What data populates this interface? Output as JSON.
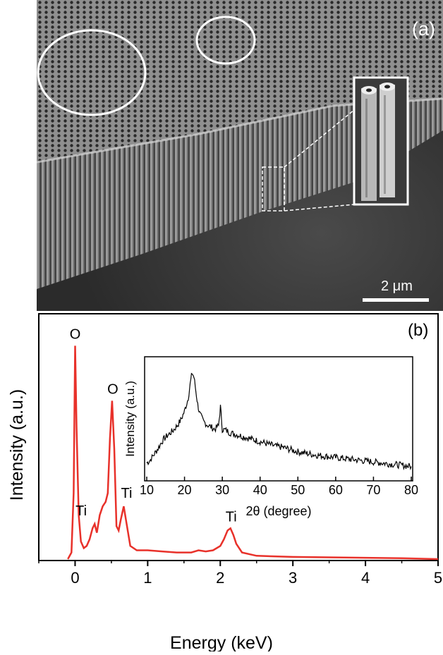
{
  "figure": {
    "panel_a": {
      "label": "(a)",
      "scale_bar_label": "2 μm"
    },
    "panel_b": {
      "label": "(b)"
    }
  },
  "chart_data": [
    {
      "type": "line",
      "panel": "b",
      "xlabel": "Energy (keV)",
      "ylabel": "Intensity (a.u.)",
      "xlim": [
        -0.5,
        5
      ],
      "xticks": [
        0,
        1,
        2,
        3,
        4,
        5
      ],
      "ylim": [
        0,
        1
      ],
      "y_ticks_shown": false,
      "color": "#e8312a",
      "series": [
        {
          "x": [
            -0.1,
            -0.05,
            -0.02,
            0.0,
            0.02,
            0.05,
            0.08,
            0.12,
            0.16,
            0.2,
            0.24,
            0.27,
            0.3,
            0.34,
            0.38,
            0.42,
            0.45,
            0.48,
            0.51,
            0.54,
            0.57,
            0.6,
            0.63,
            0.67,
            0.71,
            0.76,
            0.85,
            1.0,
            1.2,
            1.4,
            1.6,
            1.7,
            1.8,
            1.9,
            2.0,
            2.05,
            2.1,
            2.14,
            2.18,
            2.22,
            2.3,
            2.5,
            3.0,
            3.5,
            4.0,
            4.5,
            5.0
          ],
          "y": [
            0.0,
            0.03,
            0.3,
            0.97,
            0.6,
            0.2,
            0.08,
            0.05,
            0.06,
            0.09,
            0.14,
            0.16,
            0.12,
            0.2,
            0.24,
            0.26,
            0.3,
            0.55,
            0.72,
            0.5,
            0.15,
            0.13,
            0.18,
            0.24,
            0.16,
            0.06,
            0.04,
            0.04,
            0.035,
            0.03,
            0.03,
            0.04,
            0.035,
            0.04,
            0.06,
            0.09,
            0.13,
            0.14,
            0.11,
            0.07,
            0.03,
            0.015,
            0.01,
            0.008,
            0.006,
            0.004,
            0.0
          ]
        }
      ],
      "annotations": [
        {
          "text": "O",
          "x": 0.02,
          "y": 0.97
        },
        {
          "text": "O",
          "x": 0.52,
          "y": 0.72
        },
        {
          "text": "Ti",
          "x": 0.22,
          "y": 0.16
        },
        {
          "text": "Ti",
          "x": 0.69,
          "y": 0.24
        },
        {
          "text": "Ti",
          "x": 2.15,
          "y": 0.14
        }
      ]
    },
    {
      "type": "line",
      "panel": "b-inset",
      "xlabel": "2θ (degree)",
      "ylabel": "Intensity (a.u.)",
      "xlim": [
        10,
        80
      ],
      "xticks": [
        10,
        20,
        30,
        40,
        50,
        60,
        70,
        80
      ],
      "ylim": [
        0,
        1
      ],
      "y_ticks_shown": false,
      "color": "#000000",
      "series": [
        {
          "x": [
            10,
            11,
            12,
            13,
            14,
            15,
            16,
            17,
            18,
            19,
            20,
            21,
            21.5,
            22,
            22.5,
            23,
            23.5,
            24,
            25,
            26,
            27,
            28,
            29,
            29.5,
            30,
            31,
            32,
            34,
            36,
            38,
            40,
            42,
            44,
            46,
            48,
            50,
            55,
            60,
            65,
            70,
            75,
            80
          ],
          "y": [
            0.12,
            0.15,
            0.2,
            0.25,
            0.31,
            0.35,
            0.38,
            0.41,
            0.45,
            0.5,
            0.58,
            0.7,
            0.82,
            0.92,
            0.88,
            0.76,
            0.64,
            0.56,
            0.49,
            0.46,
            0.44,
            0.42,
            0.45,
            0.62,
            0.42,
            0.41,
            0.39,
            0.37,
            0.35,
            0.33,
            0.31,
            0.29,
            0.27,
            0.26,
            0.24,
            0.22,
            0.19,
            0.17,
            0.15,
            0.13,
            0.11,
            0.09
          ]
        }
      ]
    }
  ]
}
